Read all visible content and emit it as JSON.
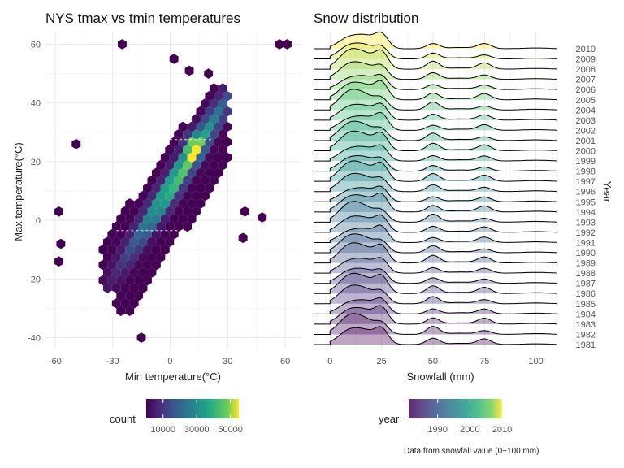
{
  "chart_data": [
    {
      "type": "heatmap",
      "subtype": "hexbin",
      "title": "NYS tmax vs tmin temperatures",
      "xlabel": "Min temperature(°C)",
      "ylabel": "Max temperature(°C)",
      "xlim": [
        -65,
        68
      ],
      "ylim": [
        -44,
        64
      ],
      "xticks": [
        -60,
        -30,
        0,
        30,
        60
      ],
      "yticks": [
        -40,
        -20,
        0,
        20,
        40,
        60
      ],
      "grid": true,
      "density_ridge": {
        "slope": 1.0,
        "intercept": 11,
        "spread_x": 9,
        "spread_y": 5
      },
      "cells": [
        {
          "x": -25,
          "y": 60,
          "count": 30
        },
        {
          "x": 2,
          "y": 55,
          "count": 30
        },
        {
          "x": 10,
          "y": 51,
          "count": 30
        },
        {
          "x": 20,
          "y": 50,
          "count": 30
        },
        {
          "x": 57,
          "y": 60,
          "count": 30
        },
        {
          "x": 61,
          "y": 60,
          "count": 30
        },
        {
          "x": 48,
          "y": 1,
          "count": 30
        },
        {
          "x": -58,
          "y": 3,
          "count": 30
        },
        {
          "x": -57,
          "y": -8,
          "count": 30
        },
        {
          "x": -58,
          "y": -14,
          "count": 30
        },
        {
          "x": -49,
          "y": 26,
          "count": 30
        },
        {
          "x": -15,
          "y": -40,
          "count": 30
        },
        {
          "x": 38,
          "y": -6,
          "count": 30
        },
        {
          "x": 39,
          "y": 3,
          "count": 30
        }
      ],
      "reference_lines": [
        {
          "y": 27.5,
          "x_from": -18,
          "x_to": 22
        },
        {
          "y": -3.5,
          "x_from": -28,
          "x_to": 5
        }
      ],
      "legend": {
        "title": "count",
        "ticks": [
          10000,
          30000,
          50000
        ],
        "tick_labels": [
          "10000",
          "30000",
          "50000"
        ],
        "range": [
          0,
          55000
        ],
        "position": "bottom"
      }
    },
    {
      "type": "area",
      "subtype": "ridgeline",
      "title": "Snow distribution",
      "xlabel": "Snowfall (mm)",
      "ylabel": "Year",
      "xlim": [
        -8,
        112
      ],
      "xticks": [
        0,
        25,
        50,
        75,
        100
      ],
      "years": [
        1981,
        1982,
        1983,
        1984,
        1985,
        1986,
        1987,
        1988,
        1989,
        1990,
        1991,
        1992,
        1993,
        1994,
        1995,
        1996,
        1997,
        1998,
        1999,
        2000,
        2001,
        2002,
        2003,
        2004,
        2005,
        2006,
        2007,
        2008,
        2009,
        2010
      ],
      "peaks_mm": [
        10,
        25,
        50,
        75
      ],
      "legend": {
        "title": "year",
        "ticks": [
          1990,
          2000,
          2010
        ],
        "tick_labels": [
          "1990",
          "2000",
          "2010"
        ],
        "range": [
          1981,
          2010
        ],
        "position": "bottom"
      }
    }
  ],
  "caption": "Data from snowfall value (0~100 mm)"
}
